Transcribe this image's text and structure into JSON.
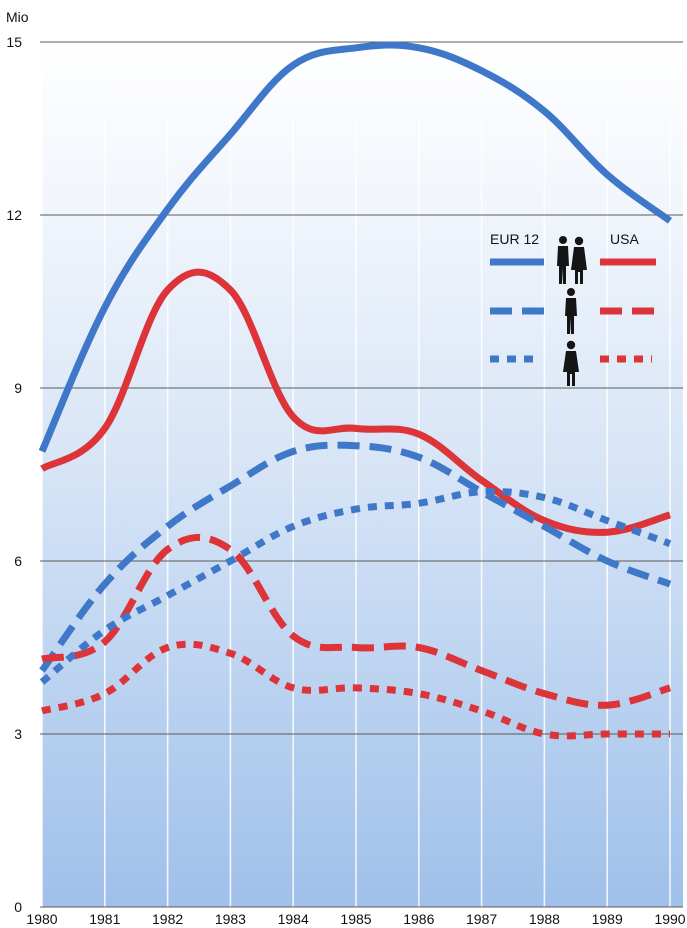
{
  "chart_data": {
    "type": "line",
    "unit_label": "Mio",
    "x": [
      1980,
      1981,
      1982,
      1983,
      1984,
      1985,
      1986,
      1987,
      1988,
      1989,
      1990
    ],
    "x_tick_labels": [
      "1980",
      "1981",
      "1982",
      "1983",
      "1984",
      "1985",
      "1986",
      "1987",
      "1988",
      "1989",
      "1990"
    ],
    "y_ticks": [
      0,
      3,
      6,
      9,
      12,
      15
    ],
    "y_tick_labels": [
      "0",
      "3",
      "6",
      "9",
      "12",
      "15"
    ],
    "ylim": [
      0,
      15
    ],
    "grid": "horizontal",
    "legend": {
      "placement": "right",
      "labels": [
        "EUR 12",
        "USA"
      ],
      "rows": [
        "total",
        "men",
        "women"
      ]
    },
    "series": [
      {
        "group": "EUR 12",
        "row": "total",
        "color": "#3f78c8",
        "dash": "solid",
        "values": [
          7.9,
          10.4,
          12.1,
          13.4,
          14.6,
          14.9,
          14.9,
          14.5,
          13.8,
          12.7,
          11.9
        ]
      },
      {
        "group": "USA",
        "row": "total",
        "color": "#dc3438",
        "dash": "solid",
        "values": [
          7.6,
          8.3,
          10.7,
          10.7,
          8.5,
          8.3,
          8.2,
          7.4,
          6.7,
          6.5,
          6.8
        ]
      },
      {
        "group": "EUR 12",
        "row": "men",
        "color": "#3f78c8",
        "dash": "long",
        "values": [
          4.1,
          5.6,
          6.6,
          7.3,
          7.9,
          8.0,
          7.8,
          7.2,
          6.6,
          6.0,
          5.6
        ]
      },
      {
        "group": "USA",
        "row": "men",
        "color": "#dc3438",
        "dash": "long",
        "values": [
          4.3,
          4.6,
          6.2,
          6.2,
          4.7,
          4.5,
          4.5,
          4.1,
          3.7,
          3.5,
          3.8
        ]
      },
      {
        "group": "EUR 12",
        "row": "women",
        "color": "#3f78c8",
        "dash": "short",
        "values": [
          3.9,
          4.8,
          5.4,
          6.0,
          6.6,
          6.9,
          7.0,
          7.2,
          7.1,
          6.7,
          6.3
        ]
      },
      {
        "group": "USA",
        "row": "women",
        "color": "#dc3438",
        "dash": "short",
        "values": [
          3.4,
          3.7,
          4.5,
          4.4,
          3.8,
          3.8,
          3.7,
          3.4,
          3.0,
          3.0,
          3.0
        ]
      }
    ]
  }
}
